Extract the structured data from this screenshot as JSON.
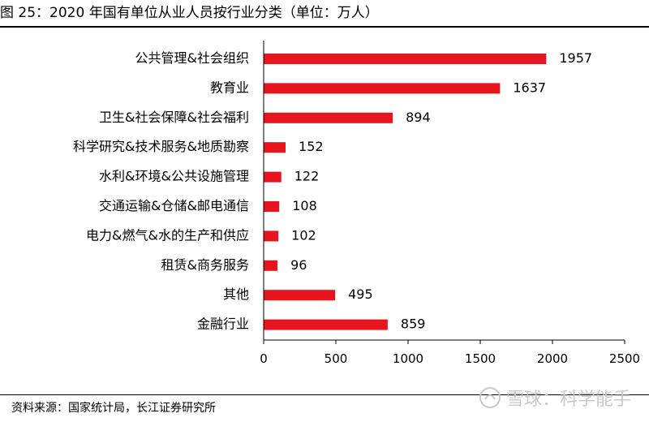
{
  "figure": {
    "title": "图 25：2020 年国有单位从业人员按行业分类（单位：万人）",
    "source": "资料来源：国家统计局，长江证券研究所",
    "watermark": "雪球：科学能手"
  },
  "colors": {
    "bar": "#e8141e",
    "axis": "#000000",
    "text": "#000000"
  },
  "chart_data": {
    "type": "bar",
    "orientation": "horizontal",
    "categories": [
      "公共管理&社会组织",
      "教育业",
      "卫生&社会保障&社会福利",
      "科学研究&技术服务&地质勘察",
      "水利&环境&公共设施管理",
      "交通运输&仓储&邮电通信",
      "电力&燃气&水的生产和供应",
      "租赁&商务服务",
      "其他",
      "金融行业"
    ],
    "values": [
      1957,
      1637,
      894,
      152,
      122,
      108,
      102,
      96,
      495,
      859
    ],
    "xlim": [
      0,
      2500
    ],
    "xticks": [
      0,
      500,
      1000,
      1500,
      2000,
      2500
    ],
    "grid": false,
    "legend": "none"
  }
}
